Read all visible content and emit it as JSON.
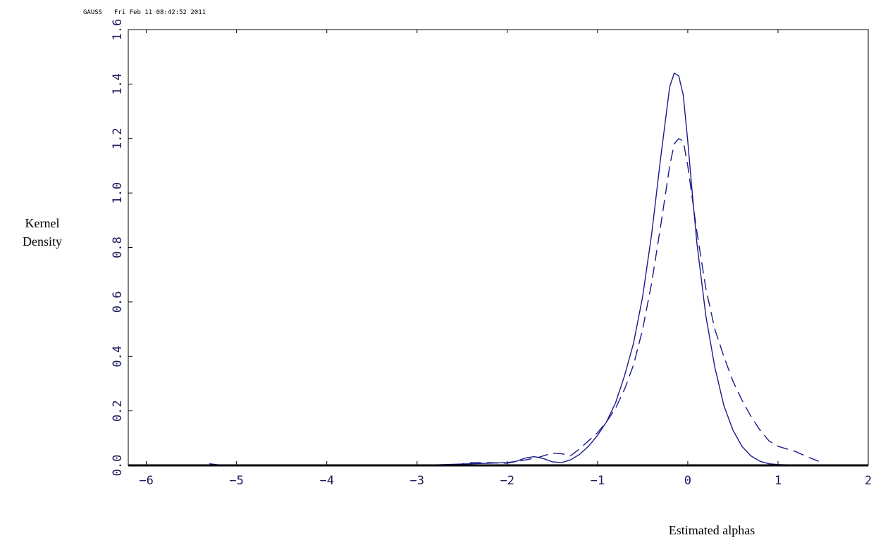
{
  "header": {
    "app": "GAUSS",
    "timestamp": "Fri Feb 11 08:42:52 2011"
  },
  "colors": {
    "line": "#1a1a8c",
    "axis": "#000000",
    "tick_text": "#1a1a5e"
  },
  "chart_data": {
    "type": "line",
    "title": "",
    "xlabel": "Estimated alphas",
    "ylabel": [
      "Kernel",
      "Density"
    ],
    "xlim": [
      -6.2,
      2.0
    ],
    "ylim": [
      0.0,
      1.6
    ],
    "x_ticks": [
      -6,
      -5,
      -4,
      -3,
      -2,
      -1,
      0,
      1,
      2
    ],
    "x_tick_labels": [
      "−6",
      "−5",
      "−4",
      "−3",
      "−2",
      "−1",
      "0",
      "1",
      "2"
    ],
    "y_ticks": [
      0.0,
      0.2,
      0.4,
      0.6,
      0.8,
      1.0,
      1.2,
      1.4,
      1.6
    ],
    "y_tick_labels": [
      "0.0",
      "0.2",
      "0.4",
      "0.6",
      "0.8",
      "1.0",
      "1.2",
      "1.4",
      "1.6"
    ],
    "grid": false,
    "legend": "none",
    "series": [
      {
        "style": "solid",
        "x": [
          -5.3,
          -5.2,
          -5.0,
          -4.8,
          -4.5,
          -4.0,
          -3.5,
          -3.2,
          -3.0,
          -2.6,
          -2.4,
          -2.2,
          -2.0,
          -1.9,
          -1.8,
          -1.7,
          -1.6,
          -1.5,
          -1.4,
          -1.3,
          -1.2,
          -1.1,
          -1.0,
          -0.9,
          -0.8,
          -0.7,
          -0.6,
          -0.5,
          -0.4,
          -0.3,
          -0.2,
          -0.15,
          -0.1,
          -0.05,
          0.0,
          0.05,
          0.1,
          0.2,
          0.3,
          0.4,
          0.5,
          0.6,
          0.7,
          0.8,
          0.9,
          1.0,
          1.2,
          1.5,
          1.85
        ],
        "y": [
          0.006,
          0.002,
          0.0,
          0.002,
          0.0,
          0.0,
          0.0,
          0.002,
          0.0,
          0.004,
          0.006,
          0.008,
          0.01,
          0.015,
          0.027,
          0.032,
          0.025,
          0.013,
          0.01,
          0.02,
          0.04,
          0.07,
          0.11,
          0.16,
          0.23,
          0.33,
          0.45,
          0.62,
          0.85,
          1.13,
          1.39,
          1.44,
          1.43,
          1.36,
          1.19,
          1.0,
          0.82,
          0.55,
          0.36,
          0.22,
          0.13,
          0.07,
          0.035,
          0.015,
          0.006,
          0.003,
          0.001,
          0.0,
          0.002
        ]
      },
      {
        "style": "dashed",
        "x": [
          -2.6,
          -2.4,
          -2.2,
          -2.0,
          -1.8,
          -1.65,
          -1.5,
          -1.4,
          -1.3,
          -1.2,
          -1.1,
          -1.0,
          -0.9,
          -0.8,
          -0.7,
          -0.6,
          -0.5,
          -0.4,
          -0.3,
          -0.2,
          -0.15,
          -0.1,
          -0.05,
          0.0,
          0.1,
          0.2,
          0.3,
          0.4,
          0.5,
          0.6,
          0.7,
          0.8,
          0.9,
          1.0,
          1.1,
          1.2,
          1.3,
          1.45
        ],
        "y": [
          0.0,
          0.01,
          0.01,
          0.008,
          0.02,
          0.03,
          0.045,
          0.043,
          0.035,
          0.06,
          0.09,
          0.12,
          0.16,
          0.21,
          0.28,
          0.37,
          0.5,
          0.67,
          0.88,
          1.1,
          1.18,
          1.2,
          1.19,
          1.1,
          0.86,
          0.65,
          0.5,
          0.4,
          0.31,
          0.24,
          0.18,
          0.13,
          0.09,
          0.07,
          0.06,
          0.05,
          0.035,
          0.015
        ]
      }
    ]
  }
}
